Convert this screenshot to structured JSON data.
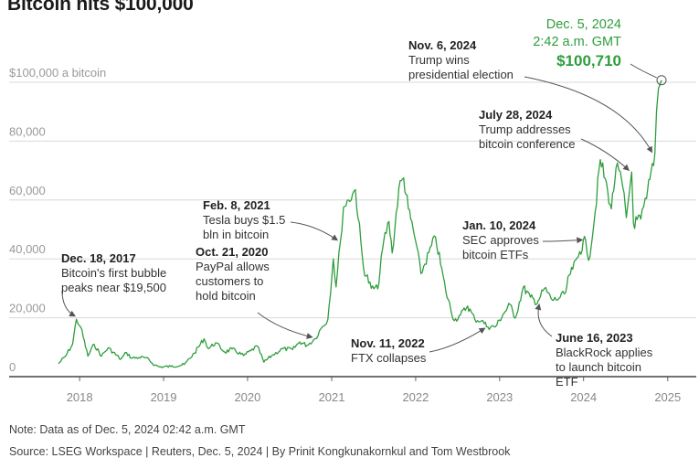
{
  "title": "Bitcoin hits $100,000",
  "note": "Note: Data as of Dec. 5, 2024 02:42 a.m. GMT",
  "source": "Source: LSEG Workspace | Reuters, Dec. 5, 2024 | By Prinit Kongkunakornkul and Tom Westbrook",
  "colors": {
    "line": "#2e9e3d",
    "grid": "#d9d9d9",
    "axis_text": "#999999",
    "arrow": "#555555"
  },
  "annotations": {
    "record": {
      "date": "Dec. 5, 2024",
      "time": "2:42 a.m. GMT",
      "value": "$100,710"
    },
    "trump_election": {
      "date": "Nov. 6, 2024",
      "line1": "Trump wins",
      "line2": "presidential election"
    },
    "trump_conference": {
      "date": "July 28, 2024",
      "line1": "Trump addresses",
      "line2": "bitcoin conference"
    },
    "tesla": {
      "date": "Feb. 8, 2021",
      "line1": "Tesla buys $1.5",
      "line2": "bln in bitcoin"
    },
    "paypal": {
      "date": "Oct. 21, 2020",
      "line1": "PayPal allows",
      "line2": "customers to",
      "line3": "hold bitcoin"
    },
    "bubble": {
      "date": "Dec. 18, 2017",
      "line1": "Bitcoin's first bubble",
      "line2": "peaks near $19,500"
    },
    "sec_etf": {
      "date": "Jan. 10, 2024",
      "line1": "SEC approves",
      "line2": "bitcoin ETFs"
    },
    "ftx": {
      "date": "Nov. 11, 2022",
      "line1": "FTX collapses"
    },
    "blackrock": {
      "date": "June 16, 2023",
      "line1": "BlackRock applies",
      "line2": "to launch bitcoin",
      "line3": "ETF"
    }
  },
  "chart_data": {
    "type": "line",
    "title": "Bitcoin hits $100,000",
    "xlabel": "",
    "ylabel": "",
    "y_tick_labels": [
      "0",
      "20,000",
      "40,000",
      "60,000",
      "80,000",
      "$100,000 a bitcoin"
    ],
    "y_ticks": [
      0,
      20000,
      40000,
      60000,
      80000,
      100000
    ],
    "ylim": [
      0,
      100000
    ],
    "x_tick_labels": [
      "2018",
      "2019",
      "2020",
      "2021",
      "2022",
      "2023",
      "2024",
      "2025"
    ],
    "x_ticks": [
      "2018-01-01",
      "2019-01-01",
      "2020-01-01",
      "2021-01-01",
      "2022-01-01",
      "2023-01-01",
      "2024-01-01",
      "2025-01-01"
    ],
    "xlim": [
      "2017-10-01",
      "2025-01-01"
    ],
    "grid": "horizontal",
    "series": [
      {
        "x": [
          "2017-10-01",
          "2017-11-01",
          "2017-12-01",
          "2017-12-18",
          "2018-01-06",
          "2018-02-06",
          "2018-03-05",
          "2018-04-06",
          "2018-05-05",
          "2018-06-29",
          "2018-07-24",
          "2018-08-14",
          "2018-09-15",
          "2018-10-15",
          "2018-11-25",
          "2018-12-15",
          "2019-02-01",
          "2019-04-01",
          "2019-05-15",
          "2019-06-26",
          "2019-07-15",
          "2019-08-15",
          "2019-09-25",
          "2019-10-26",
          "2019-12-15",
          "2020-01-15",
          "2020-02-13",
          "2020-03-12",
          "2020-04-15",
          "2020-06-01",
          "2020-07-15",
          "2020-08-15",
          "2020-09-15",
          "2020-10-21",
          "2020-11-15",
          "2020-12-15",
          "2021-01-08",
          "2021-01-20",
          "2021-02-08",
          "2021-02-21",
          "2021-03-15",
          "2021-04-14",
          "2021-05-19",
          "2021-06-22",
          "2021-07-20",
          "2021-08-15",
          "2021-09-07",
          "2021-09-21",
          "2021-10-20",
          "2021-11-10",
          "2021-11-30",
          "2021-12-31",
          "2022-01-24",
          "2022-03-28",
          "2022-05-12",
          "2022-06-18",
          "2022-07-15",
          "2022-08-15",
          "2022-09-15",
          "2022-10-15",
          "2022-11-11",
          "2022-12-15",
          "2023-01-15",
          "2023-02-15",
          "2023-03-10",
          "2023-04-14",
          "2023-05-15",
          "2023-06-15",
          "2023-06-16",
          "2023-07-15",
          "2023-08-18",
          "2023-09-15",
          "2023-10-15",
          "2023-10-30",
          "2023-11-15",
          "2023-12-15",
          "2024-01-10",
          "2024-01-23",
          "2024-02-15",
          "2024-03-14",
          "2024-04-15",
          "2024-05-01",
          "2024-05-21",
          "2024-06-15",
          "2024-07-05",
          "2024-07-28",
          "2024-08-05",
          "2024-09-06",
          "2024-10-01",
          "2024-10-15",
          "2024-11-06",
          "2024-11-13",
          "2024-11-22",
          "2024-12-05"
        ],
        "y": [
          4400,
          7000,
          11000,
          19500,
          16800,
          7000,
          11000,
          7000,
          9800,
          5900,
          8200,
          6300,
          6500,
          6400,
          3900,
          3300,
          3450,
          4100,
          8000,
          12900,
          9500,
          11500,
          8300,
          9400,
          7100,
          8800,
          10300,
          4900,
          7100,
          9500,
          9200,
          11800,
          10600,
          12900,
          16300,
          19400,
          40000,
          30500,
          46000,
          57500,
          60000,
          63500,
          37000,
          30000,
          29800,
          46000,
          52700,
          42000,
          64000,
          67500,
          57000,
          46300,
          35000,
          47500,
          29000,
          19000,
          21000,
          24000,
          19500,
          19000,
          16900,
          17000,
          21000,
          24500,
          19900,
          30300,
          27000,
          25000,
          25600,
          30000,
          26000,
          26500,
          28500,
          34500,
          36500,
          42500,
          46500,
          39500,
          52000,
          73700,
          63000,
          57000,
          71000,
          66500,
          54000,
          69500,
          52000,
          53500,
          60500,
          67000,
          75700,
          90000,
          98000,
          100710
        ]
      }
    ],
    "annotation_points": [
      {
        "label": "Dec. 18, 2017",
        "x": "2017-12-18",
        "y": 19500
      },
      {
        "label": "Oct. 21, 2020",
        "x": "2020-10-21",
        "y": 12900
      },
      {
        "label": "Feb. 8, 2021",
        "x": "2021-02-08",
        "y": 46000
      },
      {
        "label": "Nov. 11, 2022",
        "x": "2022-11-11",
        "y": 16900
      },
      {
        "label": "June 16, 2023",
        "x": "2023-06-16",
        "y": 25600
      },
      {
        "label": "Jan. 10, 2024",
        "x": "2024-01-10",
        "y": 46500
      },
      {
        "label": "July 28, 2024",
        "x": "2024-07-28",
        "y": 69500
      },
      {
        "label": "Nov. 6, 2024",
        "x": "2024-11-06",
        "y": 75700
      },
      {
        "label": "Dec. 5, 2024",
        "x": "2024-12-05",
        "y": 100710
      }
    ]
  }
}
